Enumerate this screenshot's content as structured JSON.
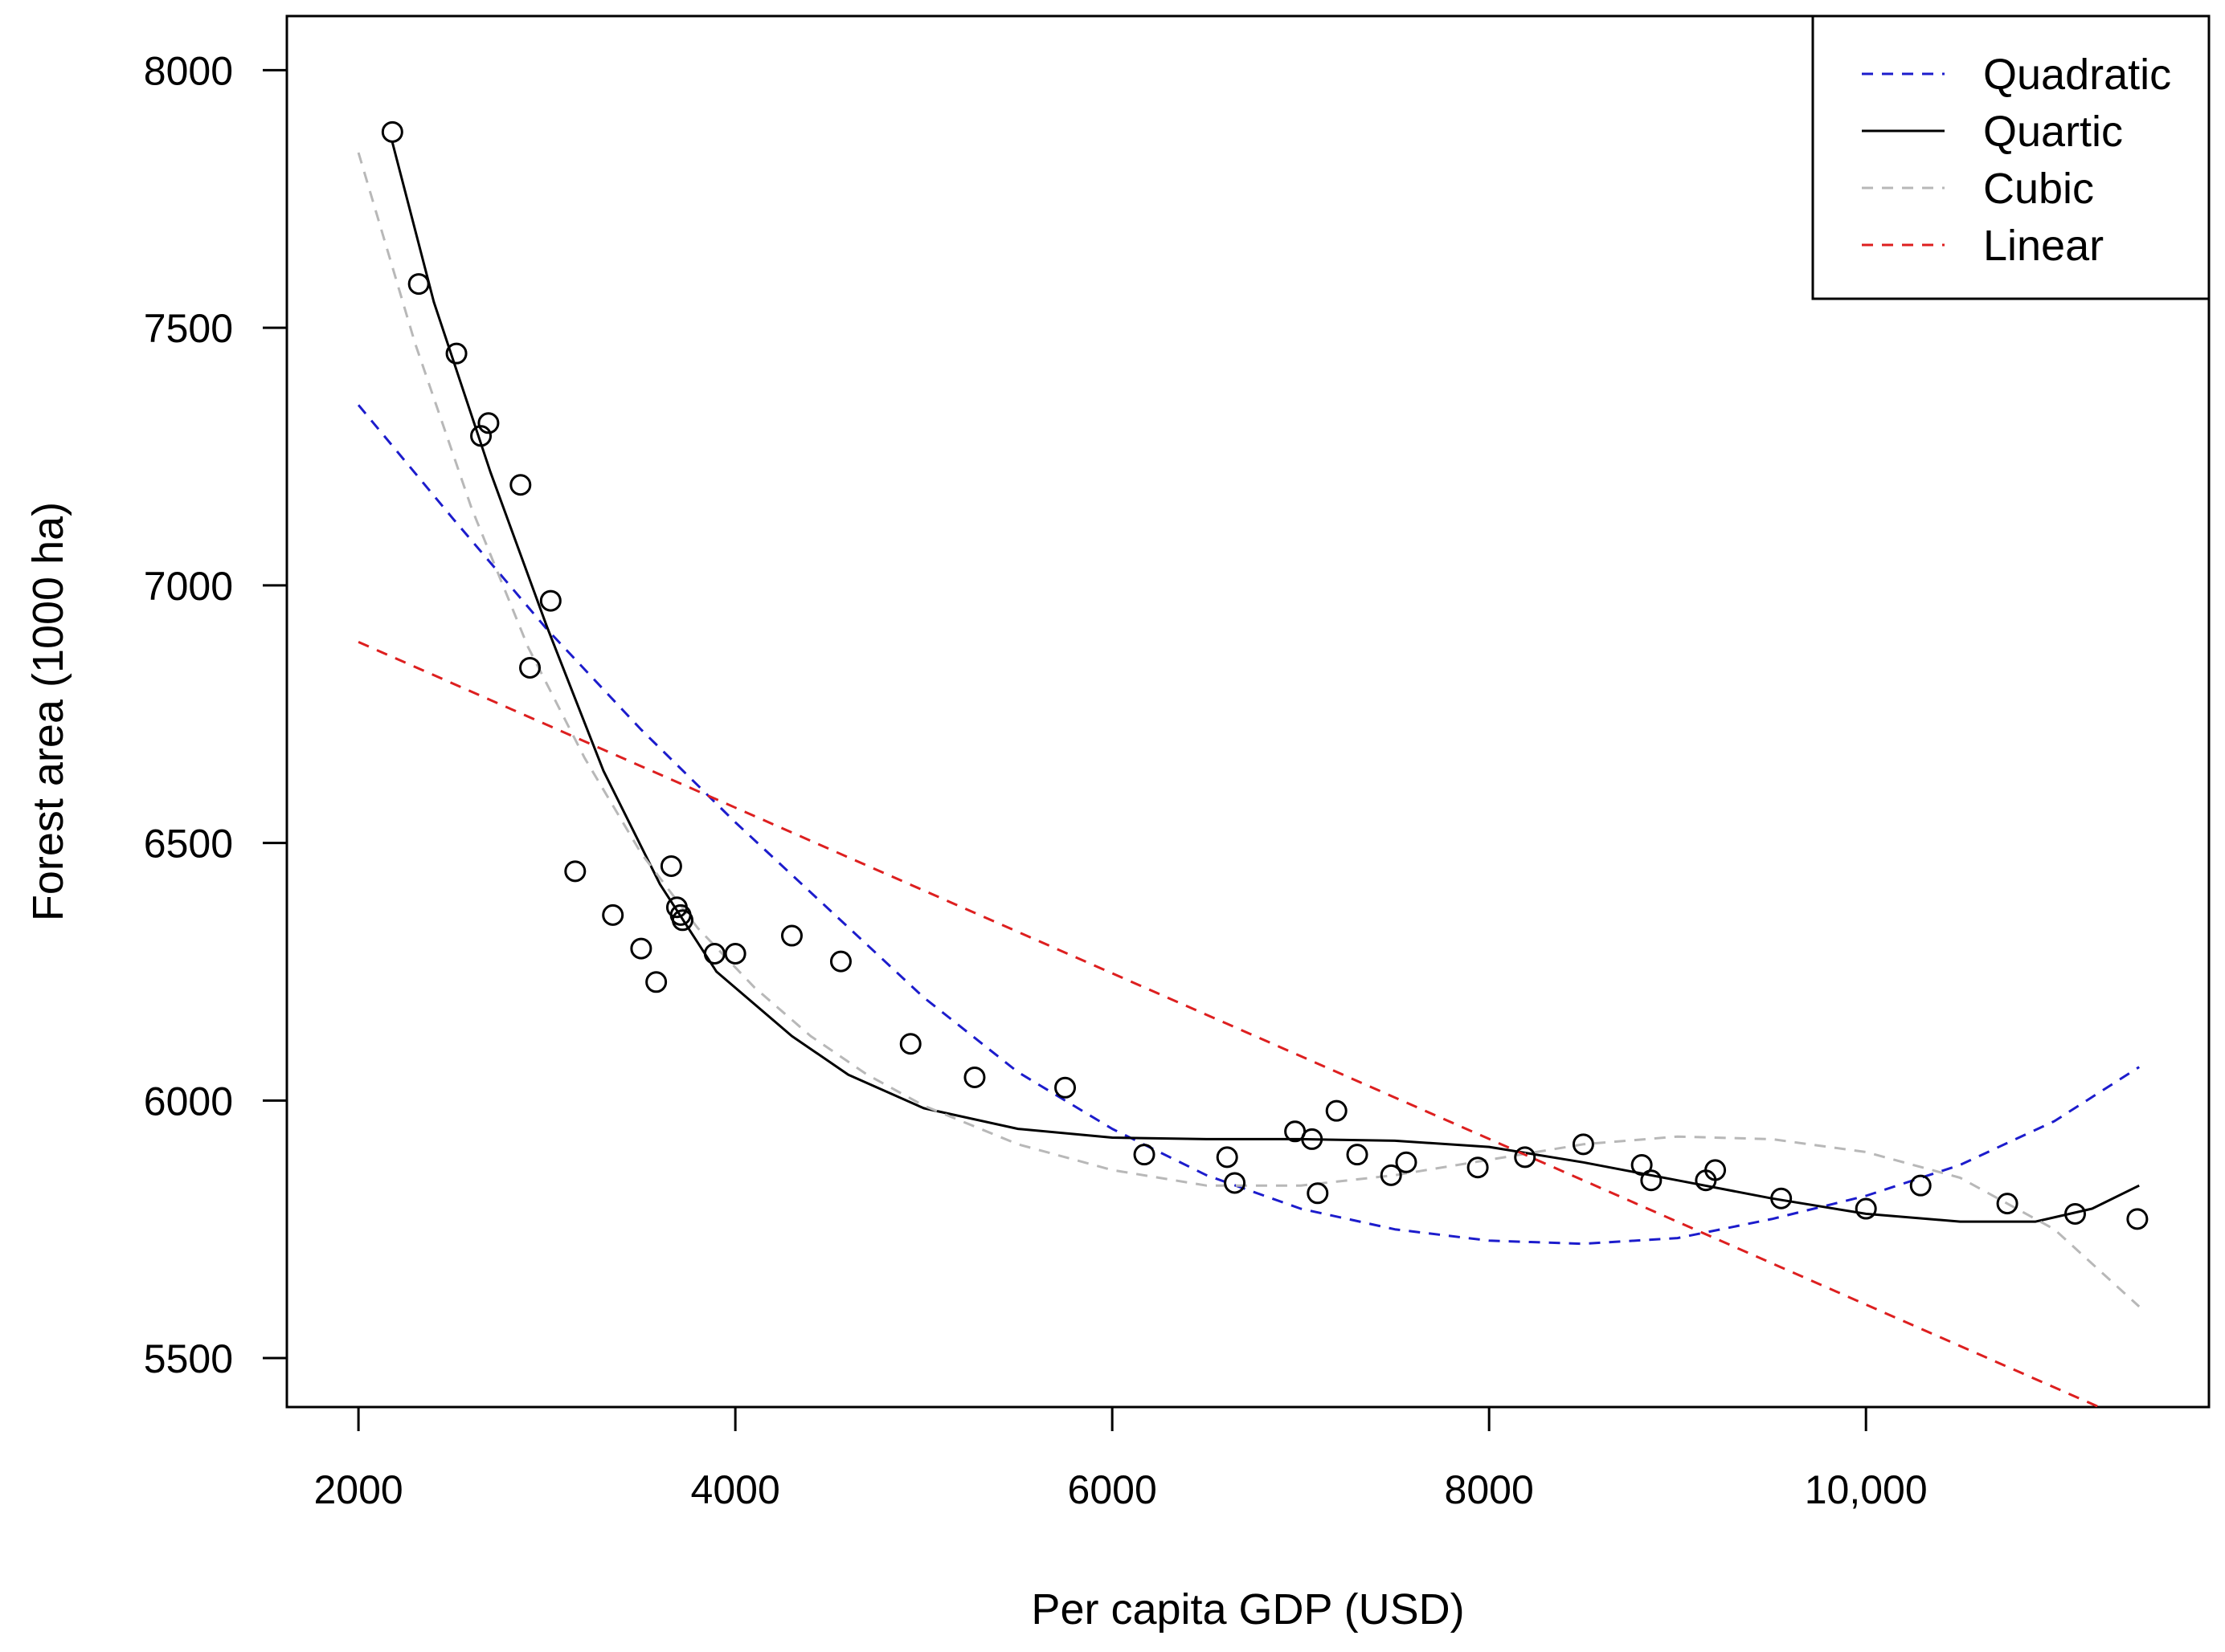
{
  "chart_data": {
    "type": "scatter",
    "title": "",
    "xlabel": "Per capita GDP (USD)",
    "ylabel": "Forest area (1000 ha)",
    "xlim": [
      1620,
      11820
    ],
    "ylim": [
      5405,
      8105
    ],
    "x_ticks": [
      2000,
      4000,
      6000,
      8000,
      10000
    ],
    "x_tick_labels": [
      "2000",
      "4000",
      "6000",
      "8000",
      "10,000"
    ],
    "y_ticks": [
      5500,
      6000,
      6500,
      7000,
      7500,
      8000
    ],
    "y_tick_labels": [
      "5500",
      "6000",
      "6500",
      "7000",
      "7500",
      "8000"
    ],
    "grid": false,
    "legend_position": "top-right",
    "points": {
      "name": "Observations",
      "x": [
        2180,
        2320,
        2520,
        2650,
        2690,
        2860,
        2910,
        3020,
        3150,
        3350,
        3500,
        3580,
        3660,
        3690,
        3710,
        3720,
        3890,
        4000,
        4300,
        4560,
        4930,
        5270,
        5750,
        6170,
        6610,
        6650,
        6970,
        7060,
        7090,
        7190,
        7300,
        7480,
        7560,
        7940,
        8190,
        8500,
        8810,
        8860,
        9150,
        9200,
        9550,
        10000,
        10290,
        10750,
        11110,
        11440
      ],
      "y": [
        7880,
        7585,
        7450,
        7290,
        7315,
        7195,
        6840,
        6970,
        6445,
        6360,
        6295,
        6230,
        6455,
        6375,
        6360,
        6350,
        6285,
        6285,
        6320,
        6270,
        6110,
        6045,
        6025,
        5895,
        5890,
        5840,
        5940,
        5925,
        5820,
        5980,
        5895,
        5855,
        5880,
        5870,
        5890,
        5915,
        5875,
        5845,
        5845,
        5865,
        5810,
        5790,
        5835,
        5800,
        5780,
        5770
      ]
    },
    "series": [
      {
        "name": "Quadratic",
        "color": "#1c1ccc",
        "style": "dashed",
        "x": [
          2000,
          2500,
          3000,
          3500,
          4000,
          4500,
          5000,
          5500,
          6000,
          6500,
          7000,
          7500,
          8000,
          8500,
          9000,
          9500,
          10000,
          10500,
          11000,
          11450
        ],
        "y": [
          7350,
          7130,
          6915,
          6720,
          6540,
          6370,
          6200,
          6055,
          5945,
          5855,
          5790,
          5750,
          5728,
          5722,
          5733,
          5770,
          5815,
          5875,
          5960,
          6065
        ]
      },
      {
        "name": "Quartic",
        "color": "#000000",
        "style": "solid",
        "x": [
          2180,
          2400,
          2700,
          3000,
          3300,
          3600,
          3900,
          4300,
          4600,
          5000,
          5500,
          6000,
          6500,
          7000,
          7500,
          8000,
          8500,
          9000,
          9500,
          10000,
          10500,
          10900,
          11200,
          11450
        ],
        "y": [
          7860,
          7550,
          7220,
          6920,
          6640,
          6420,
          6250,
          6125,
          6050,
          5985,
          5945,
          5928,
          5925,
          5925,
          5922,
          5910,
          5880,
          5845,
          5810,
          5780,
          5765,
          5765,
          5790,
          5835
        ]
      },
      {
        "name": "Cubic",
        "color": "#b8b8b8",
        "style": "dashed",
        "x": [
          2000,
          2300,
          2600,
          2900,
          3200,
          3500,
          3800,
          4100,
          4400,
          4700,
          5000,
          5500,
          6000,
          6500,
          7000,
          7500,
          8000,
          8500,
          9000,
          9500,
          10000,
          10500,
          11000,
          11450
        ],
        "y": [
          7840,
          7470,
          7150,
          6880,
          6665,
          6480,
          6335,
          6220,
          6125,
          6050,
          5990,
          5915,
          5865,
          5835,
          5835,
          5855,
          5885,
          5915,
          5930,
          5925,
          5900,
          5850,
          5750,
          5600
        ]
      },
      {
        "name": "Linear",
        "color": "#dd1f1f",
        "style": "dashed",
        "x": [
          2000,
          11330
        ],
        "y": [
          6890,
          5390
        ]
      }
    ]
  }
}
